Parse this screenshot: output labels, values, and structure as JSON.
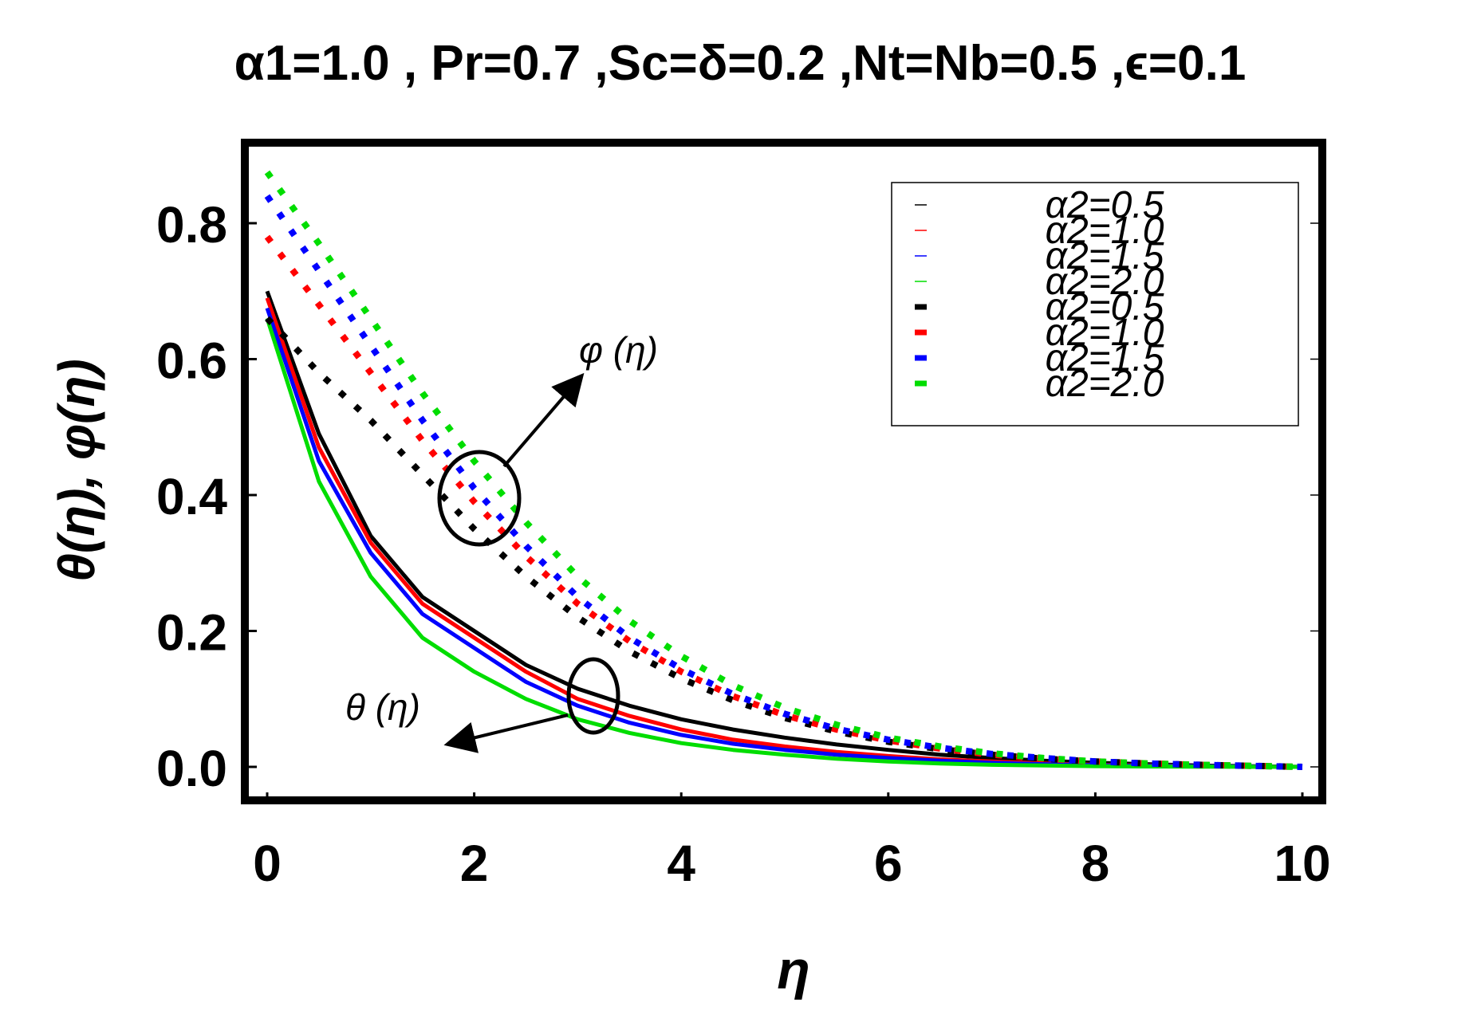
{
  "chart_data": {
    "type": "line",
    "title": "α1=1.0 , Pr=0.7 ,Sc=δ=0.2 ,Nt=Nb=0.5 ,ϵ=0.1",
    "xlabel": "η",
    "ylabel": "θ(η), φ(η)",
    "xlim": [
      0,
      10
    ],
    "ylim": [
      -0.05,
      0.9
    ],
    "xticks": [
      "0",
      "2",
      "4",
      "6",
      "8",
      "10"
    ],
    "yticks": [
      "0.0",
      "0.2",
      "0.4",
      "0.6",
      "0.8"
    ],
    "grid": false,
    "legend_position": "top-right",
    "annotations": [
      {
        "text": "φ (η)",
        "label": "phi-annotation"
      },
      {
        "text": "θ (η)",
        "label": "theta-annotation"
      }
    ],
    "x": [
      0,
      0.5,
      1,
      1.5,
      2,
      2.5,
      3,
      3.5,
      4,
      4.5,
      5,
      5.5,
      6,
      6.5,
      7,
      7.5,
      8,
      8.5,
      9,
      9.5,
      10
    ],
    "series": [
      {
        "name": "α2=0.5",
        "style": "solid",
        "color": "#000000",
        "values": [
          0.7,
          0.49,
          0.34,
          0.25,
          0.2,
          0.15,
          0.115,
          0.09,
          0.07,
          0.055,
          0.043,
          0.033,
          0.025,
          0.018,
          0.013,
          0.009,
          0.006,
          0.004,
          0.002,
          0.001,
          0.0
        ]
      },
      {
        "name": "α2=1.0",
        "style": "solid",
        "color": "#ff0000",
        "values": [
          0.69,
          0.47,
          0.33,
          0.24,
          0.19,
          0.14,
          0.1,
          0.075,
          0.055,
          0.04,
          0.03,
          0.022,
          0.016,
          0.011,
          0.008,
          0.005,
          0.003,
          0.002,
          0.001,
          0.0005,
          0.0
        ]
      },
      {
        "name": "α2=1.5",
        "style": "solid",
        "color": "#0000ff",
        "values": [
          0.675,
          0.45,
          0.315,
          0.225,
          0.175,
          0.125,
          0.09,
          0.065,
          0.047,
          0.034,
          0.025,
          0.018,
          0.013,
          0.009,
          0.006,
          0.004,
          0.0025,
          0.0015,
          0.001,
          0.0005,
          0.0
        ]
      },
      {
        "name": "α2=2.0",
        "style": "solid",
        "color": "#00dd00",
        "values": [
          0.66,
          0.42,
          0.28,
          0.19,
          0.14,
          0.1,
          0.07,
          0.05,
          0.035,
          0.025,
          0.018,
          0.012,
          0.008,
          0.005,
          0.003,
          0.002,
          0.001,
          0.0006,
          0.0003,
          0.0001,
          0.0
        ]
      },
      {
        "name": "α2=0.5",
        "style": "dotted",
        "color": "#000000",
        "values": [
          0.66,
          0.58,
          0.51,
          0.43,
          0.35,
          0.28,
          0.22,
          0.17,
          0.13,
          0.098,
          0.072,
          0.052,
          0.037,
          0.026,
          0.018,
          0.012,
          0.008,
          0.005,
          0.003,
          0.0015,
          0.0
        ]
      },
      {
        "name": "α2=1.0",
        "style": "dotted",
        "color": "#ff0000",
        "values": [
          0.78,
          0.68,
          0.58,
          0.48,
          0.39,
          0.31,
          0.24,
          0.185,
          0.14,
          0.104,
          0.076,
          0.055,
          0.039,
          0.027,
          0.018,
          0.012,
          0.008,
          0.005,
          0.003,
          0.0015,
          0.0
        ]
      },
      {
        "name": "α2=1.5",
        "style": "dotted",
        "color": "#0000ff",
        "values": [
          0.84,
          0.73,
          0.62,
          0.51,
          0.41,
          0.325,
          0.25,
          0.19,
          0.144,
          0.107,
          0.078,
          0.056,
          0.04,
          0.028,
          0.019,
          0.013,
          0.008,
          0.005,
          0.003,
          0.0015,
          0.0
        ]
      },
      {
        "name": "α2=2.0",
        "style": "dotted",
        "color": "#00dd00",
        "values": [
          0.875,
          0.77,
          0.66,
          0.55,
          0.45,
          0.36,
          0.28,
          0.215,
          0.163,
          0.12,
          0.087,
          0.062,
          0.043,
          0.03,
          0.02,
          0.013,
          0.008,
          0.005,
          0.003,
          0.0015,
          0.0
        ]
      }
    ]
  }
}
